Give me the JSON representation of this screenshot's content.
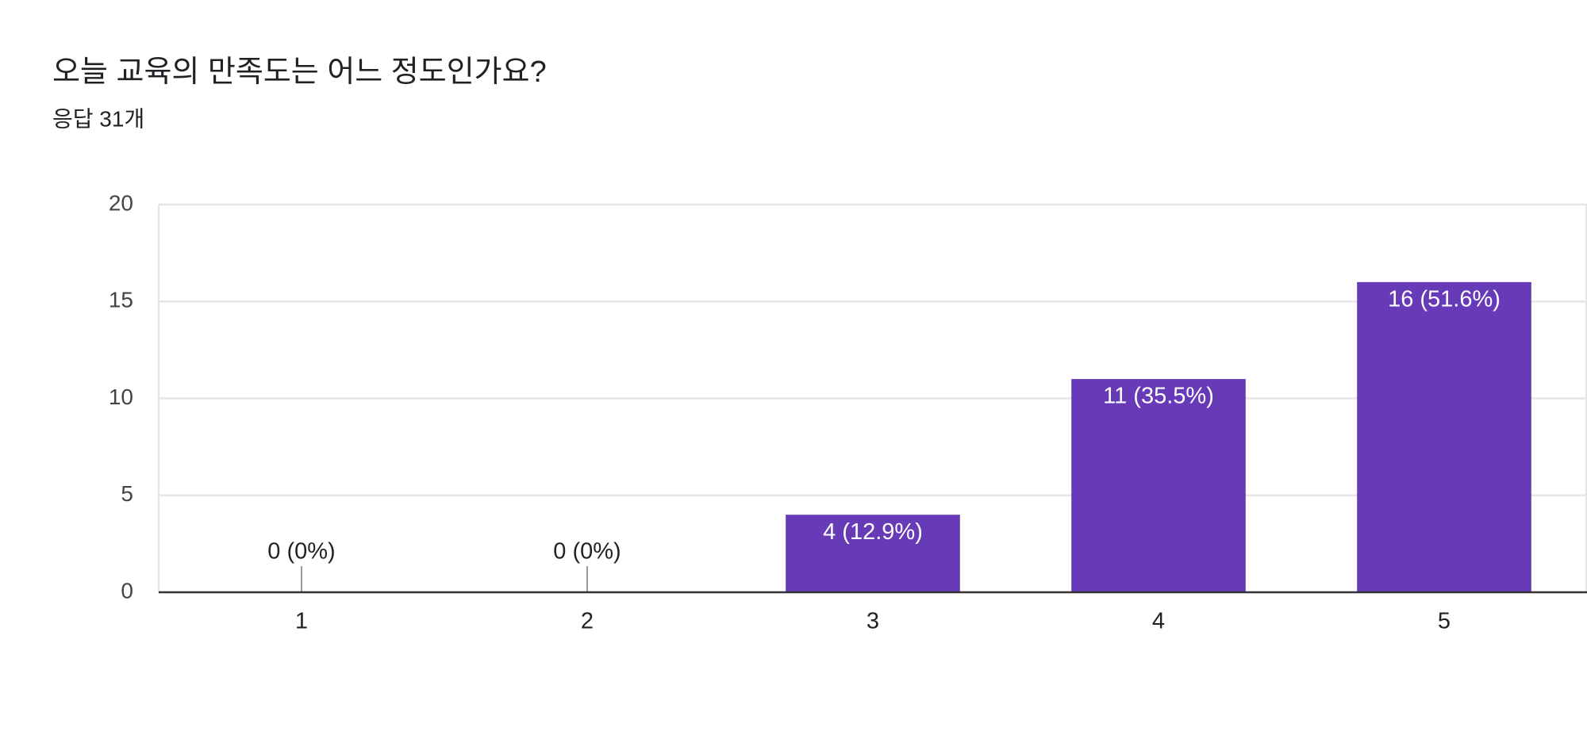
{
  "chart_data": {
    "type": "bar",
    "title": "오늘 교육의 만족도는 어느 정도인가요?",
    "subtitle": "응답 31개",
    "categories": [
      "1",
      "2",
      "3",
      "4",
      "5"
    ],
    "values": [
      0,
      0,
      4,
      11,
      16
    ],
    "value_labels": [
      "0 (0%)",
      "0 (0%)",
      "4 (12.9%)",
      "11 (35.5%)",
      "16 (51.6%)"
    ],
    "color": "#673ab7",
    "ylim": [
      0,
      20
    ],
    "yticks": [
      0,
      5,
      10,
      15,
      20
    ],
    "grid": true
  }
}
